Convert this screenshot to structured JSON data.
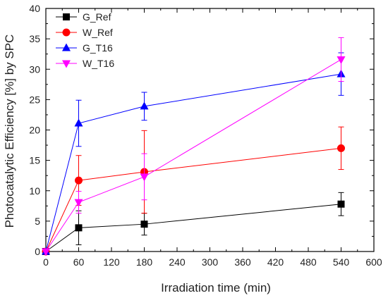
{
  "chart_data": {
    "type": "line",
    "xlabel": "Irradiation time (min)",
    "ylabel": "Photocatalytic Efficiency [%] by SPC",
    "xlim": [
      0,
      600
    ],
    "ylim": [
      0,
      40
    ],
    "xticks": [
      0,
      60,
      120,
      180,
      240,
      300,
      360,
      420,
      480,
      540,
      600
    ],
    "yticks": [
      0,
      5,
      10,
      15,
      20,
      25,
      30,
      35,
      40
    ],
    "grid": false,
    "legend_position": "top-left",
    "series": [
      {
        "name": "G_Ref",
        "color": "#000000",
        "marker": "square",
        "points": [
          {
            "x": 0,
            "y": 0,
            "err": null
          },
          {
            "x": 60,
            "y": 3.9,
            "err": 2.8
          },
          {
            "x": 180,
            "y": 4.5,
            "err": 1.8
          },
          {
            "x": 540,
            "y": 7.8,
            "err": 1.9
          }
        ]
      },
      {
        "name": "W_Ref",
        "color": "#ff0000",
        "marker": "circle",
        "points": [
          {
            "x": 0,
            "y": 0,
            "err": null
          },
          {
            "x": 60,
            "y": 11.7,
            "err": 4.1
          },
          {
            "x": 180,
            "y": 13.1,
            "err": 6.8
          },
          {
            "x": 540,
            "y": 17.0,
            "err": 3.5
          }
        ]
      },
      {
        "name": "G_T16",
        "color": "#0000ff",
        "marker": "triangle-up",
        "points": [
          {
            "x": 0,
            "y": 0,
            "err": null
          },
          {
            "x": 60,
            "y": 21.1,
            "err": 3.8
          },
          {
            "x": 180,
            "y": 23.9,
            "err": 2.3
          },
          {
            "x": 540,
            "y": 29.2,
            "err": 3.5
          }
        ]
      },
      {
        "name": "W_T16",
        "color": "#ff00ff",
        "marker": "triangle-down",
        "points": [
          {
            "x": 0,
            "y": 0,
            "err": null
          },
          {
            "x": 60,
            "y": 8.1,
            "err": 1.8
          },
          {
            "x": 180,
            "y": 12.3,
            "err": 3.8
          },
          {
            "x": 540,
            "y": 31.6,
            "err": 3.6
          }
        ]
      }
    ]
  }
}
